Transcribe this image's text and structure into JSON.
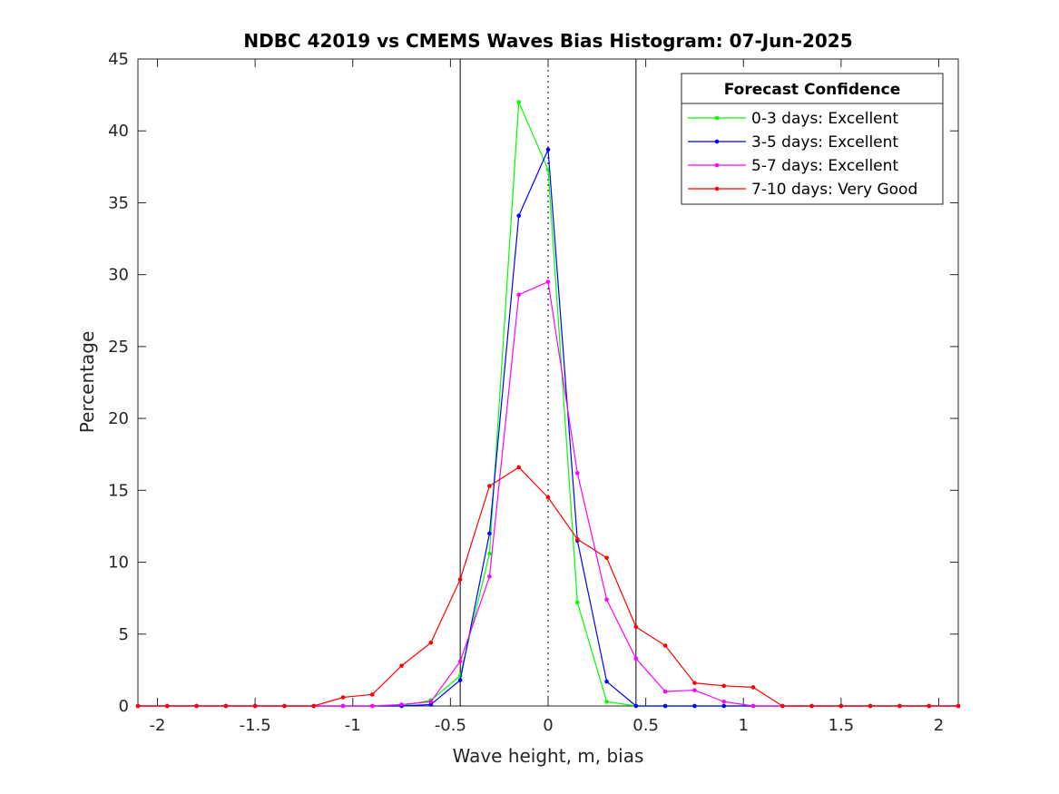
{
  "chart_data": {
    "type": "line",
    "title": "NDBC 42019 vs CMEMS Waves Bias Histogram: 07-Jun-2025",
    "xlabel": "Wave height, m, bias",
    "ylabel": "Percentage",
    "xlim": [
      -2.1,
      2.1
    ],
    "ylim": [
      0,
      45
    ],
    "xticks": [
      -2,
      -1.5,
      -1,
      -0.5,
      0,
      0.5,
      1,
      1.5,
      2
    ],
    "xtick_labels": [
      "-2",
      "-1.5",
      "-1",
      "-0.5",
      "0",
      "0.5",
      "1",
      "1.5",
      "2"
    ],
    "yticks": [
      0,
      5,
      10,
      15,
      20,
      25,
      30,
      35,
      40,
      45
    ],
    "ytick_labels": [
      "0",
      "5",
      "10",
      "15",
      "20",
      "25",
      "30",
      "35",
      "40",
      "45"
    ],
    "grid": false,
    "reference_lines": [
      {
        "x": -0.45,
        "style": "solid",
        "color": "#000000"
      },
      {
        "x": 0,
        "style": "dotted",
        "color": "#000000"
      },
      {
        "x": 0.45,
        "style": "solid",
        "color": "#000000"
      }
    ],
    "legend": {
      "title": "Forecast Confidence",
      "position": "top-right"
    },
    "x": [
      -2.1,
      -1.95,
      -1.8,
      -1.65,
      -1.5,
      -1.35,
      -1.2,
      -1.05,
      -0.9,
      -0.75,
      -0.6,
      -0.45,
      -0.3,
      -0.15,
      0,
      0.15,
      0.3,
      0.45,
      0.6,
      0.75,
      0.9,
      1.05,
      1.2,
      1.35,
      1.5,
      1.65,
      1.8,
      1.95,
      2.1
    ],
    "series": [
      {
        "name": "0-3 days: Excellent",
        "color": "#00ff00",
        "values": [
          0,
          0,
          0,
          0,
          0,
          0,
          0,
          0,
          0,
          0,
          0.4,
          2.1,
          10.6,
          42.0,
          37.3,
          7.2,
          0.3,
          0,
          0,
          0,
          0,
          0,
          0,
          0,
          0,
          0,
          0,
          0,
          0
        ]
      },
      {
        "name": "3-5 days: Excellent",
        "color": "#0000ff",
        "values": [
          0,
          0,
          0,
          0,
          0,
          0,
          0,
          0,
          0,
          0,
          0.1,
          1.8,
          12.0,
          34.1,
          38.7,
          11.5,
          1.7,
          0,
          0,
          0,
          0,
          0,
          0,
          0,
          0,
          0,
          0,
          0,
          0
        ]
      },
      {
        "name": "5-7 days: Excellent",
        "color": "#ff00ff",
        "values": [
          0,
          0,
          0,
          0,
          0,
          0,
          0,
          0,
          0,
          0.1,
          0.3,
          3.1,
          9.0,
          28.6,
          29.5,
          16.2,
          7.4,
          3.3,
          1.0,
          1.1,
          0.3,
          0,
          0,
          0,
          0,
          0,
          0,
          0,
          0
        ]
      },
      {
        "name": "7-10 days: Very Good",
        "color": "#ff0000",
        "values": [
          0,
          0,
          0,
          0,
          0,
          0,
          0,
          0.6,
          0.8,
          2.8,
          4.4,
          8.8,
          15.3,
          16.6,
          14.5,
          11.6,
          10.3,
          5.5,
          4.2,
          1.6,
          1.4,
          1.3,
          0,
          0,
          0,
          0,
          0,
          0,
          0
        ]
      }
    ]
  }
}
